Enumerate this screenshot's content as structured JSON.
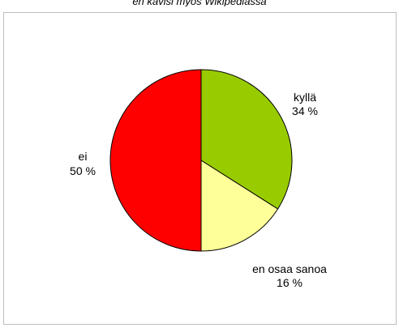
{
  "caption": "en kävisi myös Wikipediassa",
  "chart_data": {
    "type": "pie",
    "title": "",
    "start_angle_deg": 0,
    "direction": "clockwise",
    "slice_border_color": "#000000",
    "slices": [
      {
        "label": "kyllä",
        "value": 34,
        "value_text": "34 %",
        "color": "#99cc00"
      },
      {
        "label": "en osaa sanoa",
        "value": 16,
        "value_text": "16 %",
        "color": "#ffff99"
      },
      {
        "label": "ei",
        "value": 50,
        "value_text": "50 %",
        "color": "#ff0000"
      }
    ]
  }
}
